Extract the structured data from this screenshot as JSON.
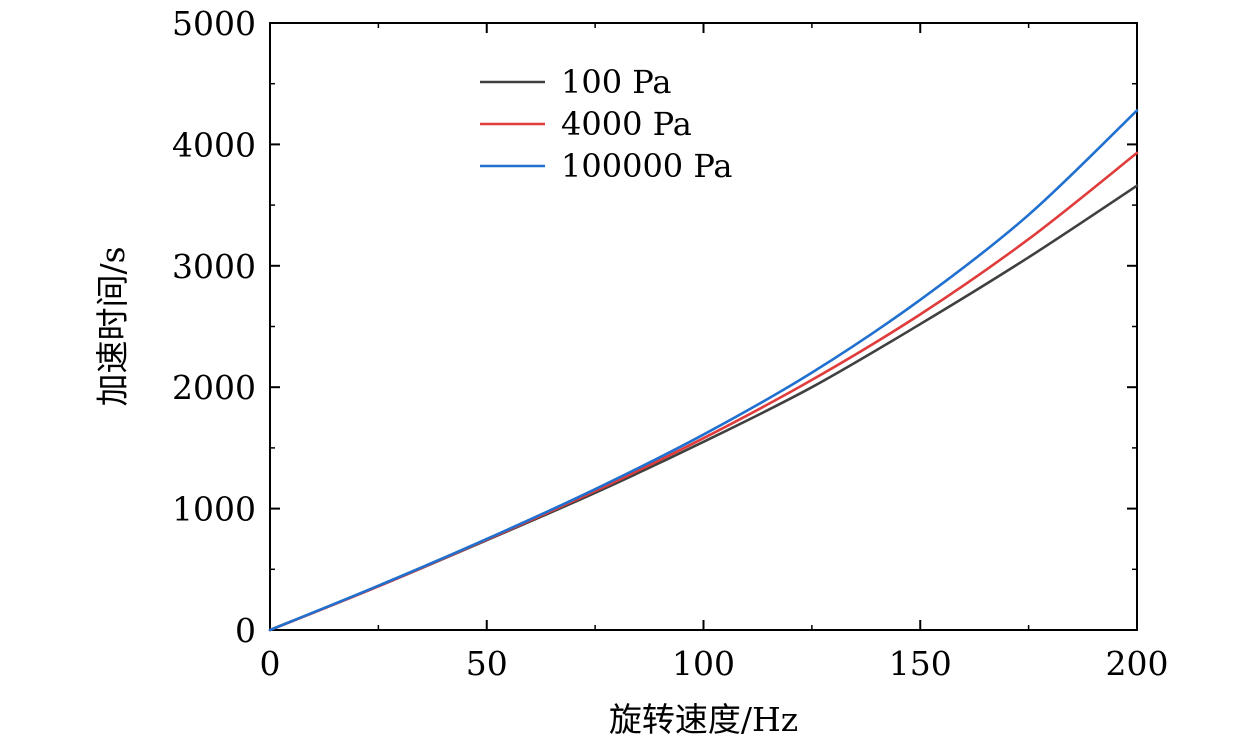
{
  "chart_data": {
    "type": "line",
    "xlabel": "旋转速度/Hz",
    "ylabel": "加速时间/s",
    "xlim": [
      0,
      200
    ],
    "ylim": [
      0,
      5000
    ],
    "xticks": [
      0,
      50,
      100,
      150,
      200
    ],
    "xtick_labels": [
      "0",
      "50",
      "100",
      "150",
      "200"
    ],
    "yticks": [
      0,
      1000,
      2000,
      3000,
      4000,
      5000
    ],
    "ytick_labels": [
      "0",
      "1000",
      "2000",
      "3000",
      "4000",
      "5000"
    ],
    "x_minor_step": 25,
    "y_minor_step": 500,
    "grid": false,
    "legend_position": "top-center",
    "x": [
      0,
      25,
      50,
      75,
      100,
      125,
      150,
      175,
      200
    ],
    "series": [
      {
        "name": "100 Pa",
        "color": "#404040",
        "values": [
          0,
          360,
          740,
          1130,
          1550,
          2000,
          2520,
          3070,
          3660
        ]
      },
      {
        "name": "4000 Pa",
        "color": "#e03c3c",
        "values": [
          0,
          360,
          745,
          1145,
          1580,
          2060,
          2600,
          3220,
          3930
        ]
      },
      {
        "name": "100000 Pa",
        "color": "#2070d0",
        "values": [
          0,
          365,
          750,
          1160,
          1610,
          2120,
          2720,
          3420,
          4280
        ]
      }
    ]
  }
}
